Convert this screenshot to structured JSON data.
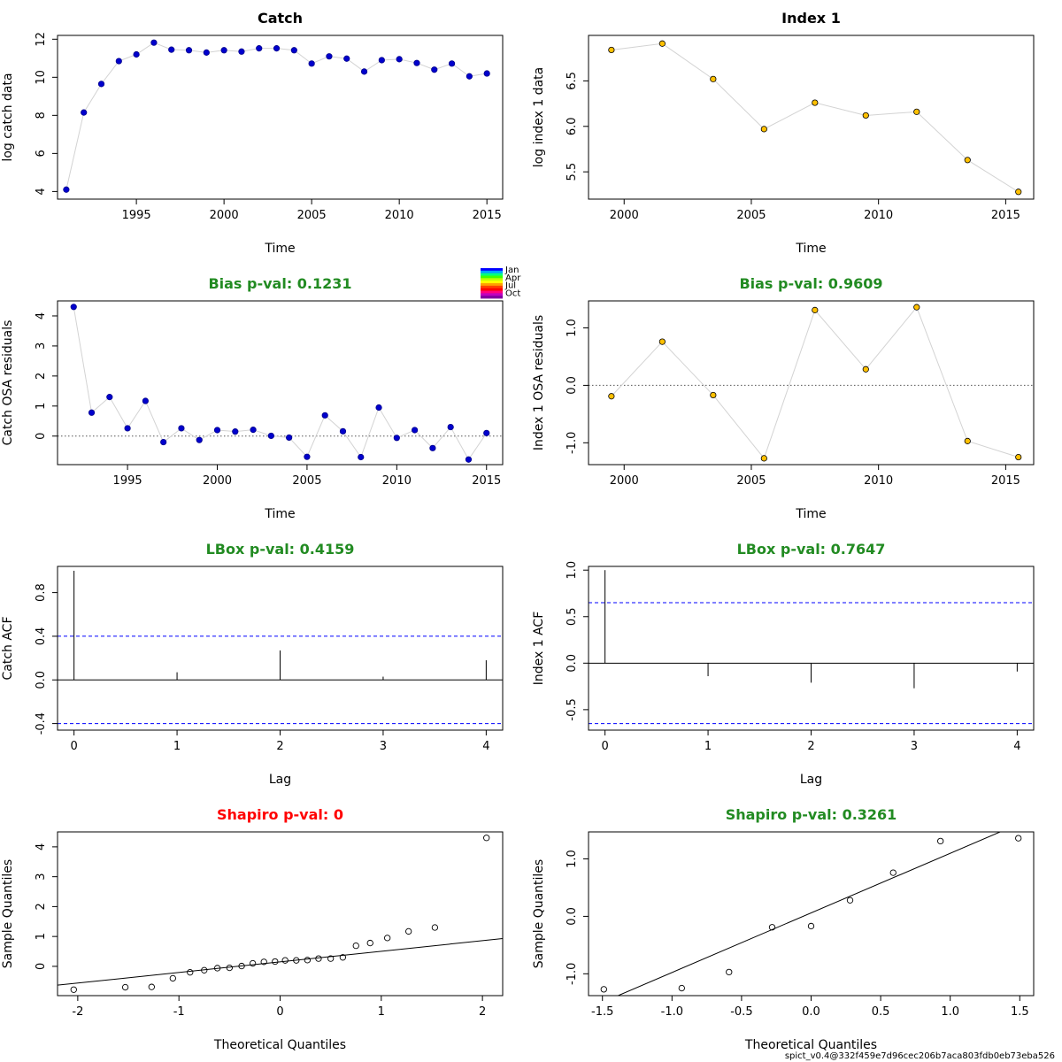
{
  "colors": {
    "catch_point": "#0000cd",
    "index_point": "#ffc000",
    "connector": "#d3d3d3",
    "title_ok": "#228b22",
    "title_fail": "#ff0000",
    "ci_line": "#0000ff"
  },
  "footer": "spict_v0.4@332f459e7d96cec206b7aca803fdb0eb73eba526",
  "month_legend": {
    "labels": [
      "Jan",
      "Apr",
      "Jul",
      "Oct"
    ]
  },
  "chart_data": [
    {
      "id": "catch-data",
      "type": "scatter",
      "title": "Catch",
      "title_color": "#000000",
      "xlabel": "Time",
      "ylabel": "log catch data",
      "xlim": [
        1990.5,
        2015.9
      ],
      "ylim": [
        3.6,
        12.2
      ],
      "xticks": [
        1995,
        2000,
        2005,
        2010,
        2015
      ],
      "yticks": [
        4,
        6,
        8,
        10,
        12
      ],
      "point_style": "filled-catch",
      "connect": true,
      "x": [
        1991,
        1992,
        1993,
        1994,
        1995,
        1996,
        1997,
        1998,
        1999,
        2000,
        2001,
        2002,
        2003,
        2004,
        2005,
        2006,
        2007,
        2008,
        2009,
        2010,
        2011,
        2012,
        2013,
        2014,
        2015
      ],
      "y": [
        4.1,
        8.15,
        9.65,
        10.85,
        11.2,
        11.82,
        11.45,
        11.42,
        11.3,
        11.42,
        11.35,
        11.52,
        11.52,
        11.42,
        10.72,
        11.1,
        10.98,
        10.3,
        10.9,
        10.95,
        10.75,
        10.4,
        10.72,
        10.05,
        10.2
      ]
    },
    {
      "id": "index1-data",
      "type": "scatter",
      "title": "Index 1",
      "title_color": "#000000",
      "xlabel": "Time",
      "ylabel": "log index 1 data",
      "xlim": [
        1998.6,
        2016.1
      ],
      "ylim": [
        5.2,
        7.0
      ],
      "xticks": [
        2000,
        2005,
        2010,
        2015
      ],
      "yticks": [
        5.5,
        6.0,
        6.5
      ],
      "ytick_labels": [
        "5.5",
        "6.0",
        "6.5"
      ],
      "point_style": "filled-index",
      "connect": true,
      "x": [
        1999.5,
        2001.5,
        2003.5,
        2005.5,
        2007.5,
        2009.5,
        2011.5,
        2013.5,
        2015.5
      ],
      "y": [
        6.84,
        6.91,
        6.52,
        5.97,
        6.26,
        6.12,
        6.16,
        5.63,
        5.28
      ]
    },
    {
      "id": "catch-resid",
      "type": "scatter",
      "title": "Bias p-val: 0.1231",
      "title_color": "#228b22",
      "xlabel": "Time",
      "ylabel": "Catch OSA residuals",
      "xlim": [
        1991.1,
        2015.9
      ],
      "ylim": [
        -0.95,
        4.5
      ],
      "xticks": [
        1995,
        2000,
        2005,
        2010,
        2015
      ],
      "yticks": [
        0,
        1,
        2,
        3,
        4
      ],
      "point_style": "filled-catch",
      "connect": true,
      "hline": 0,
      "x": [
        1992,
        1993,
        1994,
        1995,
        1996,
        1997,
        1998,
        1999,
        2000,
        2001,
        2002,
        2003,
        2004,
        2005,
        2006,
        2007,
        2008,
        2009,
        2010,
        2011,
        2012,
        2013,
        2014,
        2015
      ],
      "y": [
        4.3,
        0.78,
        1.3,
        0.26,
        1.17,
        -0.2,
        0.26,
        -0.13,
        0.2,
        0.15,
        0.21,
        0.01,
        -0.05,
        -0.69,
        0.69,
        0.16,
        -0.7,
        0.95,
        -0.06,
        0.2,
        -0.4,
        0.3,
        -0.78,
        0.1
      ]
    },
    {
      "id": "index1-resid",
      "type": "scatter",
      "title": "Bias p-val: 0.9609",
      "title_color": "#228b22",
      "xlabel": "Time",
      "ylabel": "Index 1 OSA residuals",
      "xlim": [
        1998.6,
        2016.1
      ],
      "ylim": [
        -1.38,
        1.47
      ],
      "xticks": [
        2000,
        2005,
        2010,
        2015
      ],
      "yticks": [
        -1.0,
        0.0,
        1.0
      ],
      "ytick_labels": [
        "-1.0",
        "0.0",
        "1.0"
      ],
      "point_style": "filled-index",
      "connect": true,
      "hline": 0,
      "x": [
        1999.5,
        2001.5,
        2003.5,
        2005.5,
        2007.5,
        2009.5,
        2011.5,
        2013.5,
        2015.5
      ],
      "y": [
        -0.19,
        0.76,
        -0.17,
        -1.27,
        1.31,
        0.28,
        1.36,
        -0.97,
        -1.25
      ]
    },
    {
      "id": "catch-acf",
      "type": "bar",
      "title": "LBox p-val: 0.4159",
      "title_color": "#228b22",
      "xlabel": "Lag",
      "ylabel": "Catch ACF",
      "xlim": [
        -0.16,
        4.16
      ],
      "ylim": [
        -0.46,
        1.04
      ],
      "xticks": [
        0,
        1,
        2,
        3,
        4
      ],
      "yticks": [
        -0.4,
        0.0,
        0.4,
        0.8
      ],
      "ytick_labels": [
        "-0.4",
        "0.0",
        "0.4",
        "0.8"
      ],
      "x": [
        0,
        1,
        2,
        3,
        4
      ],
      "y": [
        1.0,
        0.07,
        0.27,
        0.03,
        0.18
      ],
      "ci": [
        0.4,
        -0.4
      ]
    },
    {
      "id": "index1-acf",
      "type": "bar",
      "title": "LBox p-val: 0.7647",
      "title_color": "#228b22",
      "xlabel": "Lag",
      "ylabel": "Index 1 ACF",
      "xlim": [
        -0.16,
        4.16
      ],
      "ylim": [
        -0.72,
        1.04
      ],
      "xticks": [
        0,
        1,
        2,
        3,
        4
      ],
      "yticks": [
        -0.5,
        0.0,
        0.5,
        1.0
      ],
      "ytick_labels": [
        "-0.5",
        "0.0",
        "0.5",
        "1.0"
      ],
      "x": [
        0,
        1,
        2,
        3,
        4
      ],
      "y": [
        1.0,
        -0.14,
        -0.21,
        -0.27,
        -0.09
      ],
      "ci": [
        0.65,
        -0.65
      ]
    },
    {
      "id": "catch-qq",
      "type": "scatter",
      "title": "Shapiro p-val: 0",
      "title_color": "#ff0000",
      "xlabel": "Theoretical Quantiles",
      "ylabel": "Sample Quantiles",
      "xlim": [
        -2.2,
        2.2
      ],
      "ylim": [
        -0.98,
        4.5
      ],
      "xticks": [
        -2,
        -1,
        0,
        1,
        2
      ],
      "yticks": [
        0,
        1,
        2,
        3,
        4
      ],
      "point_style": "open",
      "connect": false,
      "qqline": [
        [
          -2.2,
          -0.63
        ],
        [
          2.2,
          0.93
        ]
      ],
      "x": [
        -2.04,
        -1.53,
        -1.27,
        -1.06,
        -0.89,
        -0.75,
        -0.62,
        -0.5,
        -0.38,
        -0.27,
        -0.16,
        -0.05,
        0.05,
        0.16,
        0.27,
        0.38,
        0.5,
        0.62,
        0.75,
        0.89,
        1.06,
        1.27,
        1.53,
        2.04
      ],
      "y": [
        -0.78,
        -0.7,
        -0.69,
        -0.4,
        -0.2,
        -0.13,
        -0.06,
        -0.05,
        0.01,
        0.1,
        0.15,
        0.16,
        0.2,
        0.2,
        0.21,
        0.26,
        0.26,
        0.3,
        0.69,
        0.78,
        0.95,
        1.17,
        1.3,
        4.3
      ]
    },
    {
      "id": "index1-qq",
      "type": "scatter",
      "title": "Shapiro p-val: 0.3261",
      "title_color": "#228b22",
      "xlabel": "Theoretical Quantiles",
      "ylabel": "Sample Quantiles",
      "xlim": [
        -1.6,
        1.6
      ],
      "ylim": [
        -1.38,
        1.47
      ],
      "xticks": [
        -1.5,
        -1.0,
        -0.5,
        0.0,
        0.5,
        1.0,
        1.5
      ],
      "xtick_labels": [
        "-1.5",
        "-1.0",
        "-0.5",
        "0.0",
        "0.5",
        "1.0",
        "1.5"
      ],
      "yticks": [
        -1.0,
        0.0,
        1.0
      ],
      "ytick_labels": [
        "-1.0",
        "0.0",
        "1.0"
      ],
      "point_style": "open",
      "connect": false,
      "qqline": [
        [
          -1.6,
          -1.6
        ],
        [
          1.6,
          1.72
        ]
      ],
      "x": [
        -1.49,
        -0.93,
        -0.59,
        -0.28,
        0.0,
        0.28,
        0.59,
        0.93,
        1.49
      ],
      "y": [
        -1.27,
        -1.25,
        -0.97,
        -0.19,
        -0.17,
        0.28,
        0.76,
        1.31,
        1.36
      ]
    }
  ]
}
